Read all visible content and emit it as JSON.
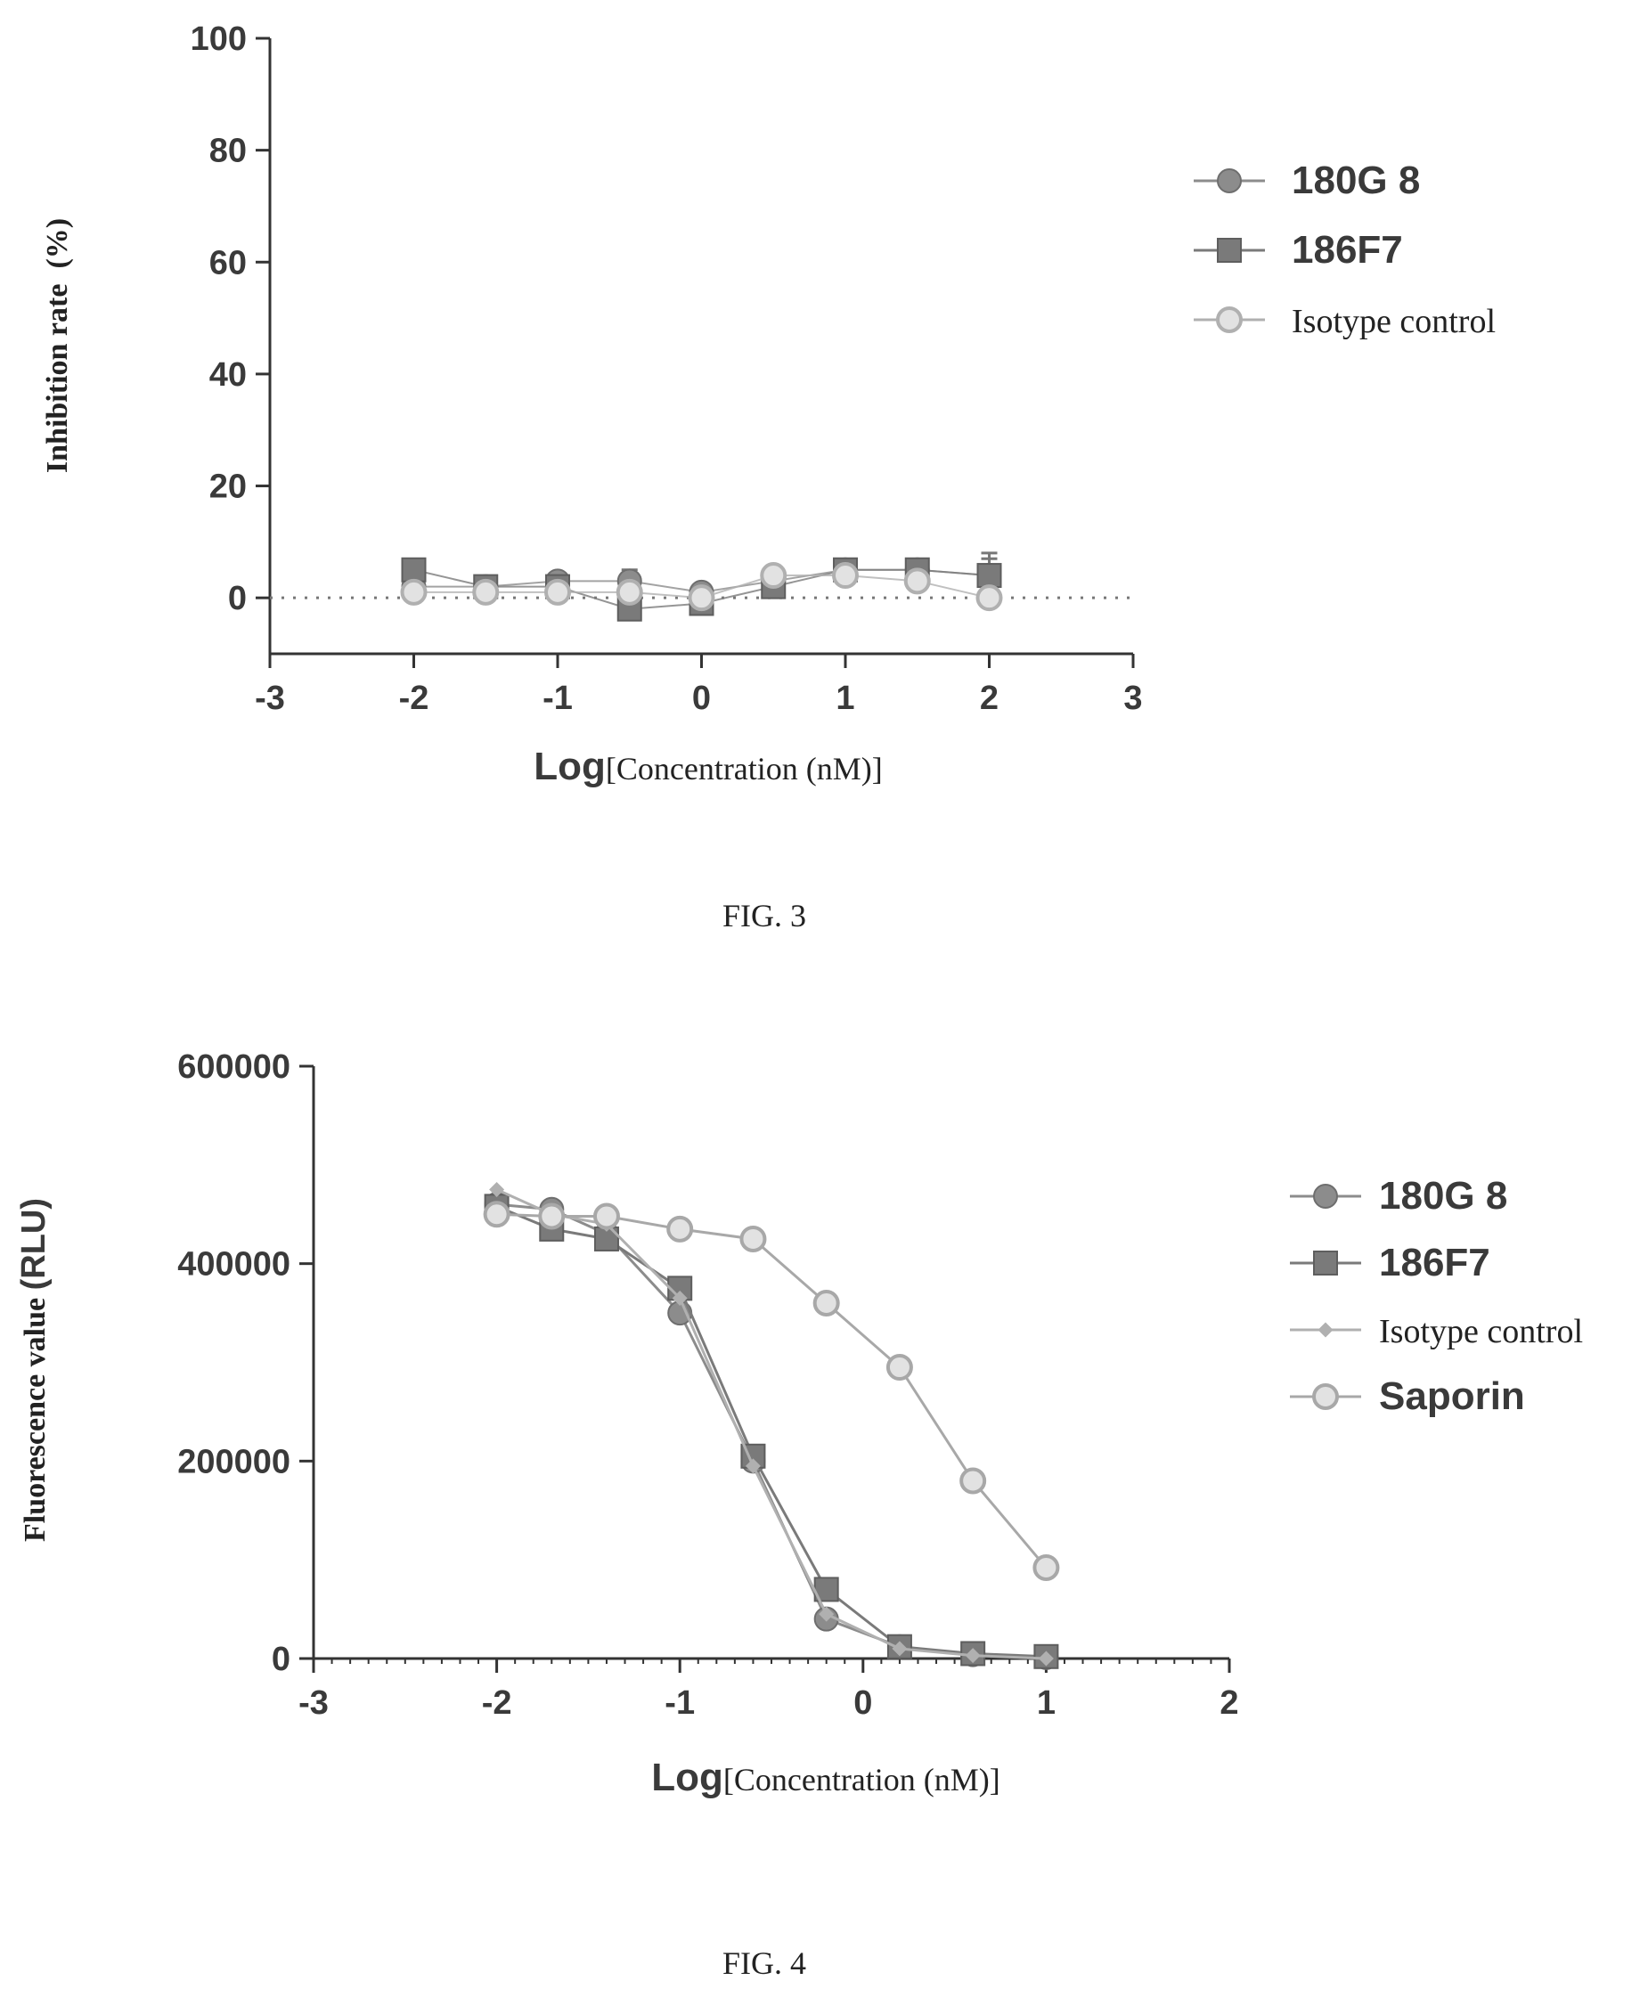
{
  "chart_data": [
    {
      "type": "scatter",
      "caption": "FIG. 3",
      "ylabel": "Inhibition rate  (%)",
      "xlabel_prefix": "Log",
      "xlabel_suffix": "[Concentration (nM)]",
      "xlim": [
        -3,
        3
      ],
      "ylim": [
        -10,
        100
      ],
      "xticks": [
        -3,
        -2,
        -1,
        0,
        1,
        2,
        3
      ],
      "yticks": [
        0,
        20,
        40,
        60,
        80,
        100
      ],
      "grid": false,
      "legend_position": "top-right",
      "x": [
        -2,
        -1.5,
        -1,
        -0.5,
        0,
        0.5,
        1,
        1.5,
        2
      ],
      "series": [
        {
          "name": "180G 8",
          "marker": "circle-filled",
          "color": "#8c8c8c",
          "values": [
            2,
            2,
            3,
            3,
            1,
            3,
            5,
            5,
            4
          ],
          "errors": [
            2,
            1,
            1,
            2,
            1,
            1,
            1,
            1,
            4
          ]
        },
        {
          "name": "186F7",
          "marker": "square-filled",
          "color": "#7a7a7a",
          "values": [
            5,
            2,
            2,
            -2,
            -1,
            2,
            5,
            5,
            4
          ],
          "errors": [
            1,
            1,
            1,
            2,
            1,
            1,
            1,
            1,
            3
          ]
        },
        {
          "name": "Isotype control",
          "marker": "circle-open",
          "color": "#b0b0b0",
          "values": [
            1,
            1,
            1,
            1,
            0,
            4,
            4,
            3,
            0
          ],
          "errors": [
            1,
            1,
            1,
            1,
            1,
            1,
            1,
            1,
            1
          ]
        }
      ]
    },
    {
      "type": "line",
      "caption": "FIG. 4",
      "ylabel_prefix": "Fluorescence value ",
      "ylabel_suffix": "(RLU)",
      "xlabel_prefix": "Log",
      "xlabel_suffix": "[Concentration (nM)]",
      "xlim": [
        -3,
        2
      ],
      "ylim": [
        0,
        600000
      ],
      "xticks": [
        -3,
        -2,
        -1,
        0,
        1,
        2
      ],
      "yticks": [
        0,
        200000,
        400000,
        600000
      ],
      "grid": false,
      "legend_position": "right",
      "x": [
        -2,
        -1.7,
        -1.4,
        -1,
        -0.6,
        -0.2,
        0.2,
        0.6,
        1
      ],
      "series": [
        {
          "name": "180G 8",
          "marker": "circle-filled",
          "color": "#8c8c8c",
          "values": [
            460000,
            455000,
            430000,
            350000,
            200000,
            40000,
            12000,
            4000,
            1000
          ]
        },
        {
          "name": "186F7",
          "marker": "square-filled",
          "color": "#7a7a7a",
          "values": [
            458000,
            435000,
            425000,
            375000,
            205000,
            70000,
            12000,
            5000,
            2000
          ]
        },
        {
          "name": "Isotype control",
          "marker": "diamond-small",
          "color": "#b0b0b0",
          "values": [
            475000,
            450000,
            440000,
            365000,
            195000,
            45000,
            10000,
            3000,
            0
          ]
        },
        {
          "name": "Saporin",
          "marker": "circle-open",
          "color": "#a8a8a8",
          "values": [
            450000,
            448000,
            448000,
            435000,
            425000,
            360000,
            295000,
            180000,
            92000
          ]
        }
      ]
    }
  ]
}
